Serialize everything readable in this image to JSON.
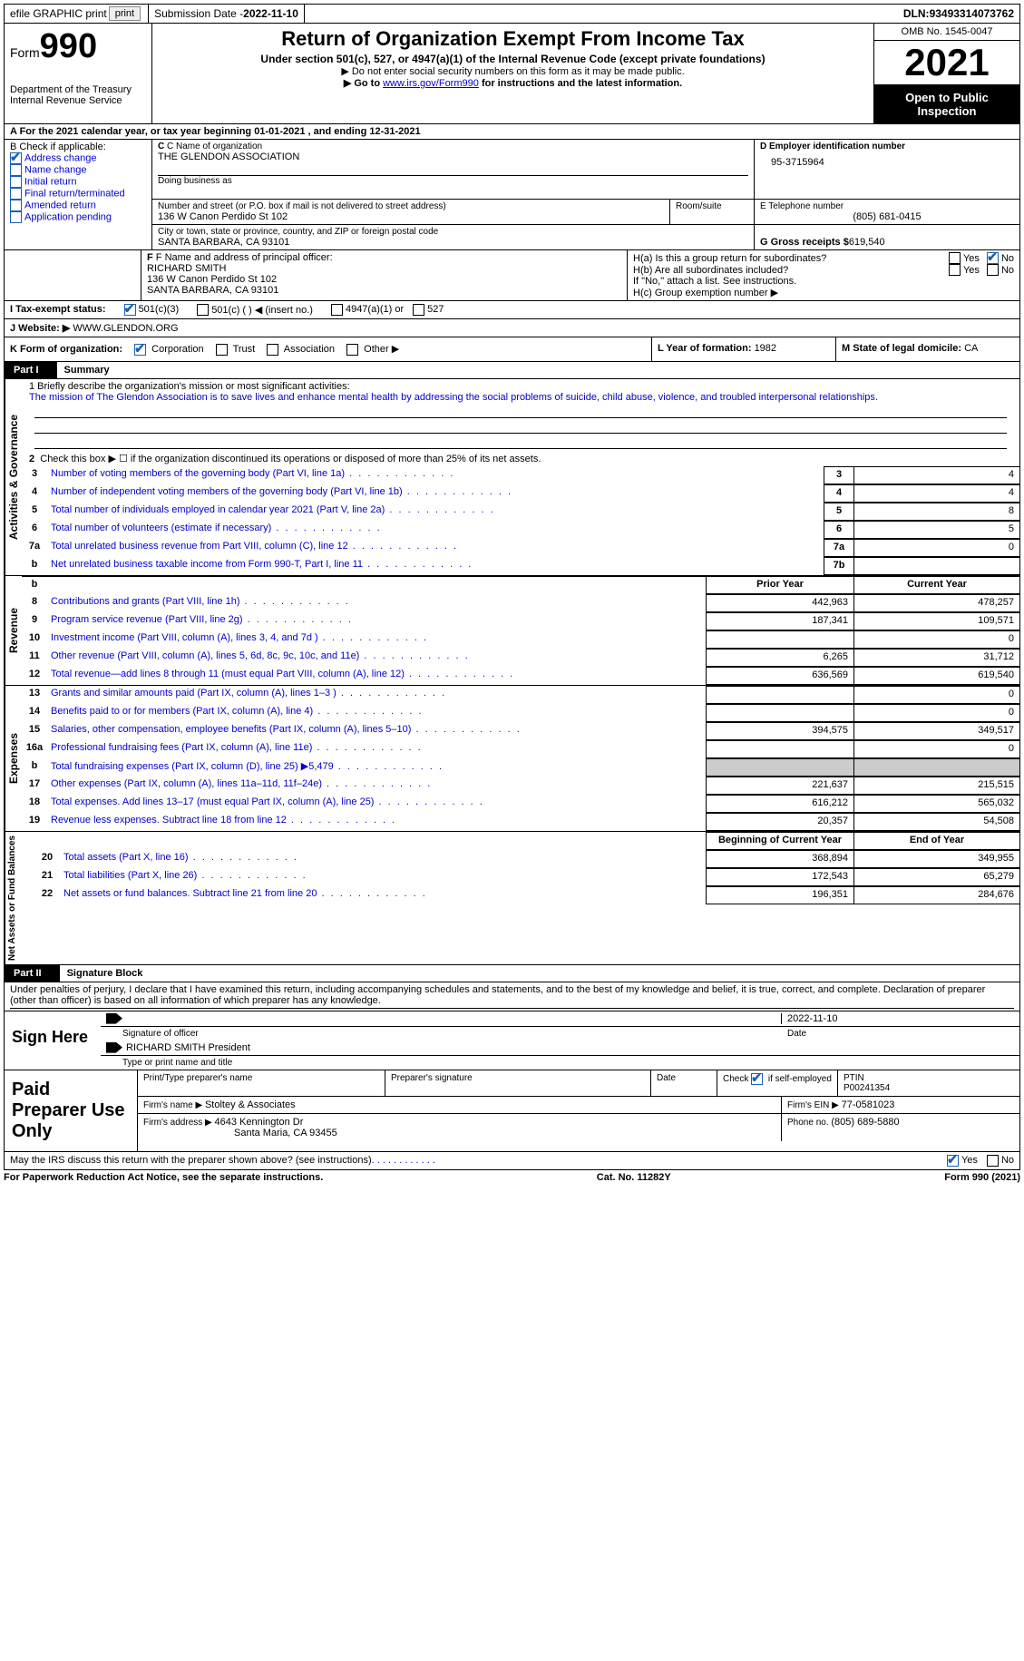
{
  "top": {
    "efile": "efile GRAPHIC print",
    "subdate_label": "Submission Date - ",
    "subdate": "2022-11-10",
    "dln_label": "DLN: ",
    "dln": "93493314073762"
  },
  "header": {
    "form_word": "Form",
    "form_num": "990",
    "dept": "Department of the Treasury",
    "irs": "Internal Revenue Service",
    "title": "Return of Organization Exempt From Income Tax",
    "sub1": "Under section 501(c), 527, or 4947(a)(1) of the Internal Revenue Code (except private foundations)",
    "sub2": "▶ Do not enter social security numbers on this form as it may be made public.",
    "sub3a": "▶ Go to ",
    "sub3link": "www.irs.gov/Form990",
    "sub3b": " for instructions and the latest information.",
    "omb": "OMB No. 1545-0047",
    "year": "2021",
    "open": "Open to Public Inspection"
  },
  "rowA": {
    "text": "A For the 2021 calendar year, or tax year beginning 01-01-2021    , and ending 12-31-2021"
  },
  "boxB": {
    "title": "B Check if applicable:",
    "items": [
      {
        "label": "Address change",
        "checked": true
      },
      {
        "label": "Name change",
        "checked": false
      },
      {
        "label": "Initial return",
        "checked": false
      },
      {
        "label": "Final return/terminated",
        "checked": false
      },
      {
        "label": "Amended return",
        "checked": false
      },
      {
        "label": "Application pending",
        "checked": false
      }
    ]
  },
  "boxC": {
    "name_label": "C Name of organization",
    "name": "THE GLENDON ASSOCIATION",
    "dba_label": "Doing business as",
    "addr_label": "Number and street (or P.O. box if mail is not delivered to street address)",
    "room_label": "Room/suite",
    "addr": "136 W Canon Perdido St 102",
    "city_label": "City or town, state or province, country, and ZIP or foreign postal code",
    "city": "SANTA BARBARA, CA   93101"
  },
  "boxD": {
    "label": "D Employer identification number",
    "value": "95-3715964",
    "tel_label": "E Telephone number",
    "tel": "(805) 681-0415",
    "gross_label": "G Gross receipts $ ",
    "gross": "619,540"
  },
  "boxF": {
    "label": "F Name and address of principal officer:",
    "name": "RICHARD SMITH",
    "addr1": "136 W Canon Perdido St 102",
    "addr2": "SANTA BARBARA, CA   93101"
  },
  "boxH": {
    "ha": "H(a)  Is this a group return for subordinates?",
    "hb": "H(b)  Are all subordinates included?",
    "hb_note": "If \"No,\" attach a list. See instructions.",
    "hc": "H(c)  Group exemption number ▶",
    "yes": "Yes",
    "no": "No"
  },
  "taxexempt": {
    "label": "I    Tax-exempt status:",
    "o1": "501(c)(3)",
    "o2": "501(c) (  ) ◀ (insert no.)",
    "o3": "4947(a)(1) or",
    "o4": "527"
  },
  "website": {
    "label": "J   Website: ▶  ",
    "value": "WWW.GLENDON.ORG"
  },
  "rowK": {
    "label": "K Form of organization:",
    "o1": "Corporation",
    "o2": "Trust",
    "o3": "Association",
    "o4": "Other ▶",
    "l_label": "L Year of formation: ",
    "l_val": "1982",
    "m_label": "M State of legal domicile: ",
    "m_val": "CA"
  },
  "part1": {
    "label": "Part I",
    "title": "Summary",
    "q1": "1   Briefly describe the organization's mission or most significant activities:",
    "mission": "The mission of The Glendon Association is to save lives and enhance mental health by addressing the social problems of suicide, child abuse, violence, and troubled interpersonal relationships.",
    "q2": "Check this box ▶ ☐  if the organization discontinued its operations or disposed of more than 25% of its net assets.",
    "rows_gov": [
      {
        "n": "3",
        "d": "Number of voting members of the governing body (Part VI, line 1a)",
        "box": "3",
        "v": "4"
      },
      {
        "n": "4",
        "d": "Number of independent voting members of the governing body (Part VI, line 1b)",
        "box": "4",
        "v": "4"
      },
      {
        "n": "5",
        "d": "Total number of individuals employed in calendar year 2021 (Part V, line 2a)",
        "box": "5",
        "v": "8"
      },
      {
        "n": "6",
        "d": "Total number of volunteers (estimate if necessary)",
        "box": "6",
        "v": "5"
      },
      {
        "n": "7a",
        "d": "Total unrelated business revenue from Part VIII, column (C), line 12",
        "box": "7a",
        "v": "0"
      },
      {
        "n": "b",
        "d": "Net unrelated business taxable income from Form 990-T, Part I, line 11",
        "box": "7b",
        "v": ""
      }
    ],
    "py": "Prior Year",
    "cy": "Current Year",
    "rows_rev": [
      {
        "n": "8",
        "d": "Contributions and grants (Part VIII, line 1h)",
        "py": "442,963",
        "cy": "478,257"
      },
      {
        "n": "9",
        "d": "Program service revenue (Part VIII, line 2g)",
        "py": "187,341",
        "cy": "109,571"
      },
      {
        "n": "10",
        "d": "Investment income (Part VIII, column (A), lines 3, 4, and 7d )",
        "py": "",
        "cy": "0"
      },
      {
        "n": "11",
        "d": "Other revenue (Part VIII, column (A), lines 5, 6d, 8c, 9c, 10c, and 11e)",
        "py": "6,265",
        "cy": "31,712"
      },
      {
        "n": "12",
        "d": "Total revenue—add lines 8 through 11 (must equal Part VIII, column (A), line 12)",
        "py": "636,569",
        "cy": "619,540"
      }
    ],
    "rows_exp": [
      {
        "n": "13",
        "d": "Grants and similar amounts paid (Part IX, column (A), lines 1–3 )",
        "py": "",
        "cy": "0"
      },
      {
        "n": "14",
        "d": "Benefits paid to or for members (Part IX, column (A), line 4)",
        "py": "",
        "cy": "0"
      },
      {
        "n": "15",
        "d": "Salaries, other compensation, employee benefits (Part IX, column (A), lines 5–10)",
        "py": "394,575",
        "cy": "349,517"
      },
      {
        "n": "16a",
        "d": "Professional fundraising fees (Part IX, column (A), line 11e)",
        "py": "",
        "cy": "0"
      },
      {
        "n": "b",
        "d": "Total fundraising expenses (Part IX, column (D), line 25) ▶5,479",
        "py": "GRAY",
        "cy": "GRAY"
      },
      {
        "n": "17",
        "d": "Other expenses (Part IX, column (A), lines 11a–11d, 11f–24e)",
        "py": "221,637",
        "cy": "215,515"
      },
      {
        "n": "18",
        "d": "Total expenses. Add lines 13–17 (must equal Part IX, column (A), line 25)",
        "py": "616,212",
        "cy": "565,032"
      },
      {
        "n": "19",
        "d": "Revenue less expenses. Subtract line 18 from line 12",
        "py": "20,357",
        "cy": "54,508"
      }
    ],
    "bcy": "Beginning of Current Year",
    "eoy": "End of Year",
    "rows_net": [
      {
        "n": "20",
        "d": "Total assets (Part X, line 16)",
        "py": "368,894",
        "cy": "349,955"
      },
      {
        "n": "21",
        "d": "Total liabilities (Part X, line 26)",
        "py": "172,543",
        "cy": "65,279"
      },
      {
        "n": "22",
        "d": "Net assets or fund balances. Subtract line 21 from line 20",
        "py": "196,351",
        "cy": "284,676"
      }
    ],
    "side_gov": "Activities & Governance",
    "side_rev": "Revenue",
    "side_exp": "Expenses",
    "side_net": "Net Assets or Fund Balances"
  },
  "part2": {
    "label": "Part II",
    "title": "Signature Block",
    "decl": "Under penalties of perjury, I declare that I have examined this return, including accompanying schedules and statements, and to the best of my knowledge and belief, it is true, correct, and complete. Declaration of preparer (other than officer) is based on all information of which preparer has any knowledge."
  },
  "sign": {
    "left": "Sign Here",
    "sig_label": "Signature of officer",
    "date": "2022-11-10",
    "date_label": "Date",
    "name": "RICHARD SMITH  President",
    "name_label": "Type or print name and title"
  },
  "prep": {
    "left": "Paid Preparer Use Only",
    "c1": "Print/Type preparer's name",
    "c2": "Preparer's signature",
    "c3": "Date",
    "c4a": "Check ",
    "c4b": " if self-employed",
    "c5l": "PTIN",
    "c5v": "P00241354",
    "firm_l": "Firm's name    ▶ ",
    "firm_v": "Stoltey & Associates",
    "ein_l": "Firm's EIN ▶ ",
    "ein_v": "77-0581023",
    "addr_l": "Firm's address ▶ ",
    "addr_v1": "4643 Kennington Dr",
    "addr_v2": "Santa Maria, CA   93455",
    "ph_l": "Phone no. ",
    "ph_v": "(805) 689-5880"
  },
  "footer": {
    "discuss": "May the IRS discuss this return with the preparer shown above? (see instructions)",
    "yes": "Yes",
    "no": "No",
    "pra": "For Paperwork Reduction Act Notice, see the separate instructions.",
    "cat": "Cat. No. 11282Y",
    "form": "Form 990 (2021)"
  }
}
